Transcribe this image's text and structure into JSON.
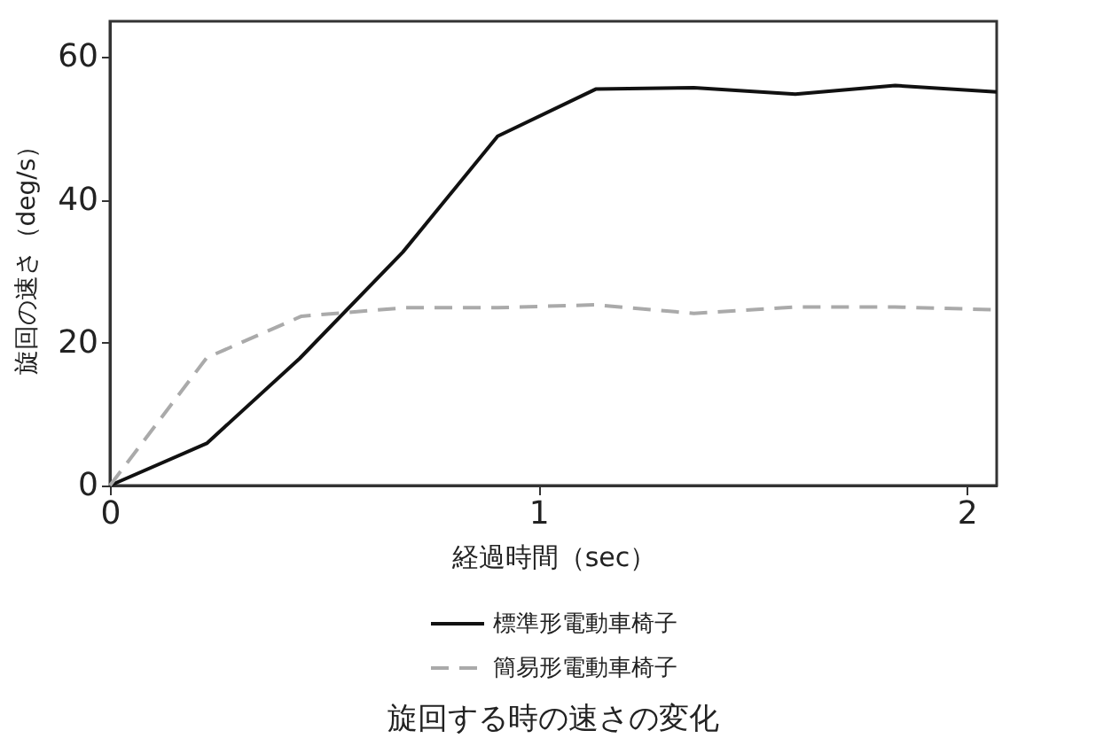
{
  "chart_data": {
    "type": "line",
    "title": "旋回する時の速さの変化",
    "xlabel": "経過時間（sec）",
    "ylabel": "旋回の速さ（deg/s）",
    "xlim": [
      0,
      2.07
    ],
    "xticks": [
      0,
      1,
      2
    ],
    "ylim": [
      0,
      65
    ],
    "yticks": [
      0,
      20,
      40,
      60
    ],
    "grid": false,
    "legend": "bottom",
    "series": [
      {
        "name": "標準形電動車椅子",
        "color": "#111111",
        "line_style": "solid",
        "x": [
          0,
          0.226,
          0.443,
          0.684,
          0.905,
          1.134,
          1.363,
          1.6,
          1.833,
          2.07
        ],
        "values": [
          0,
          5.9,
          17.8,
          32.7,
          48.9,
          55.5,
          55.7,
          54.8,
          56,
          55.1
        ]
      },
      {
        "name": "簡易形電動車椅子",
        "color": "#aaaaaa",
        "line_style": "dashed",
        "x": [
          0,
          0.226,
          0.447,
          0.69,
          0.905,
          1.134,
          1.363,
          1.6,
          1.833,
          2.07
        ],
        "values": [
          0,
          17.9,
          23.7,
          24.9,
          24.9,
          25.3,
          24.1,
          25,
          25,
          24.6
        ]
      }
    ]
  }
}
